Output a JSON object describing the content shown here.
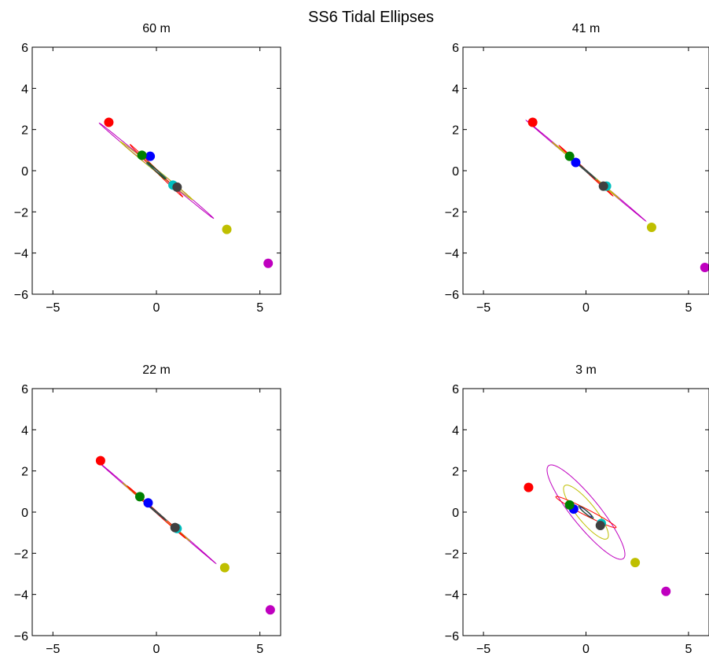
{
  "figure_title": "SS6 Tidal Ellipses",
  "chart_data": [
    {
      "type": "line",
      "title": "60 m",
      "xlim": [
        -6,
        6
      ],
      "ylim": [
        -6,
        6
      ],
      "xticks": [
        -5,
        0,
        5
      ],
      "yticks": [
        -6,
        -4,
        -2,
        0,
        2,
        4,
        6
      ],
      "grid": false,
      "ellipses": [
        {
          "color": "#bf00bf",
          "major": 7.2,
          "minor": 0.12,
          "angle_deg": -40,
          "marker": [
            5.4,
            -4.5
          ]
        },
        {
          "color": "#bfbf00",
          "major": 4.5,
          "minor": 0.12,
          "angle_deg": -39,
          "marker": [
            3.4,
            -2.85
          ]
        },
        {
          "color": "#ff0000",
          "major": 3.6,
          "minor": 0.1,
          "angle_deg": -45,
          "marker": [
            -2.3,
            2.35
          ]
        },
        {
          "color": "#00bfbf",
          "major": 1.2,
          "minor": 0.06,
          "angle_deg": -38,
          "marker": [
            0.8,
            -0.7
          ]
        },
        {
          "color": "#0000ff",
          "major": 1.1,
          "minor": 0.08,
          "angle_deg": -42,
          "marker": [
            -0.3,
            0.7
          ]
        },
        {
          "color": "#008000",
          "major": 1.2,
          "minor": 0.08,
          "angle_deg": -44,
          "marker": [
            -0.7,
            0.75
          ]
        },
        {
          "color": "#404040",
          "major": 1.2,
          "minor": 0.06,
          "angle_deg": -40,
          "marker": [
            1.0,
            -0.8
          ]
        }
      ]
    },
    {
      "type": "line",
      "title": "41 m",
      "xlim": [
        -6,
        6
      ],
      "ylim": [
        -6,
        6
      ],
      "xticks": [
        -5,
        0,
        5
      ],
      "yticks": [
        -6,
        -4,
        -2,
        0,
        2,
        4,
        6
      ],
      "grid": false,
      "ellipses": [
        {
          "color": "#bf00bf",
          "major": 7.6,
          "minor": 0.06,
          "angle_deg": -40,
          "marker": [
            5.8,
            -4.7
          ]
        },
        {
          "color": "#bfbf00",
          "major": 4.3,
          "minor": 0.06,
          "angle_deg": -40,
          "marker": [
            3.2,
            -2.75
          ]
        },
        {
          "color": "#ff0000",
          "major": 3.6,
          "minor": 0.06,
          "angle_deg": -43,
          "marker": [
            -2.6,
            2.35
          ]
        },
        {
          "color": "#00bfbf",
          "major": 1.3,
          "minor": 0.05,
          "angle_deg": -40,
          "marker": [
            1.0,
            -0.75
          ]
        },
        {
          "color": "#0000ff",
          "major": 1.1,
          "minor": 0.05,
          "angle_deg": -40,
          "marker": [
            -0.5,
            0.4
          ]
        },
        {
          "color": "#008000",
          "major": 1.2,
          "minor": 0.05,
          "angle_deg": -41,
          "marker": [
            -0.8,
            0.7
          ]
        },
        {
          "color": "#404040",
          "major": 1.2,
          "minor": 0.05,
          "angle_deg": -41,
          "marker": [
            0.85,
            -0.75
          ]
        }
      ]
    },
    {
      "type": "line",
      "title": "22 m",
      "xlim": [
        -6,
        6
      ],
      "ylim": [
        -6,
        6
      ],
      "xticks": [
        -5,
        0,
        5
      ],
      "yticks": [
        -6,
        -4,
        -2,
        0,
        2,
        4,
        6
      ],
      "grid": false,
      "ellipses": [
        {
          "color": "#bf00bf",
          "major": 7.6,
          "minor": 0.06,
          "angle_deg": -41,
          "marker": [
            5.5,
            -4.75
          ]
        },
        {
          "color": "#bfbf00",
          "major": 4.3,
          "minor": 0.06,
          "angle_deg": -41,
          "marker": [
            3.3,
            -2.7
          ]
        },
        {
          "color": "#ff0000",
          "major": 3.8,
          "minor": 0.08,
          "angle_deg": -42,
          "marker": [
            -2.7,
            2.5
          ]
        },
        {
          "color": "#00bfbf",
          "major": 1.3,
          "minor": 0.05,
          "angle_deg": -40,
          "marker": [
            1.0,
            -0.8
          ]
        },
        {
          "color": "#0000ff",
          "major": 1.1,
          "minor": 0.05,
          "angle_deg": -40,
          "marker": [
            -0.4,
            0.45
          ]
        },
        {
          "color": "#008000",
          "major": 1.2,
          "minor": 0.05,
          "angle_deg": -40,
          "marker": [
            -0.8,
            0.75
          ]
        },
        {
          "color": "#404040",
          "major": 1.2,
          "minor": 0.05,
          "angle_deg": -40,
          "marker": [
            0.9,
            -0.75
          ]
        }
      ]
    },
    {
      "type": "line",
      "title": "3 m",
      "xlim": [
        -6,
        6
      ],
      "ylim": [
        -6,
        6
      ],
      "xticks": [
        -5,
        0,
        5
      ],
      "yticks": [
        -6,
        -4,
        -2,
        0,
        2,
        4,
        6
      ],
      "grid": false,
      "ellipses": [
        {
          "color": "#bf00bf",
          "major": 5.8,
          "minor": 1.35,
          "angle_deg": -51,
          "marker": [
            3.9,
            -3.85
          ]
        },
        {
          "color": "#bfbf00",
          "major": 3.3,
          "minor": 0.9,
          "angle_deg": -51,
          "marker": [
            2.4,
            -2.45
          ]
        },
        {
          "color": "#ff0000",
          "major": 3.3,
          "minor": 0.3,
          "angle_deg": -27,
          "marker": [
            -2.8,
            1.2
          ]
        },
        {
          "color": "#00bfbf",
          "major": 0.95,
          "minor": 0.12,
          "angle_deg": -40,
          "marker": [
            0.75,
            -0.55
          ]
        },
        {
          "color": "#0000ff",
          "major": 0.7,
          "minor": 0.12,
          "angle_deg": -40,
          "marker": [
            -0.6,
            0.15
          ]
        },
        {
          "color": "#008000",
          "major": 0.9,
          "minor": 0.15,
          "angle_deg": -40,
          "marker": [
            -0.8,
            0.35
          ]
        },
        {
          "color": "#404040",
          "major": 0.9,
          "minor": 0.12,
          "angle_deg": -40,
          "marker": [
            0.7,
            -0.65
          ]
        }
      ]
    }
  ]
}
